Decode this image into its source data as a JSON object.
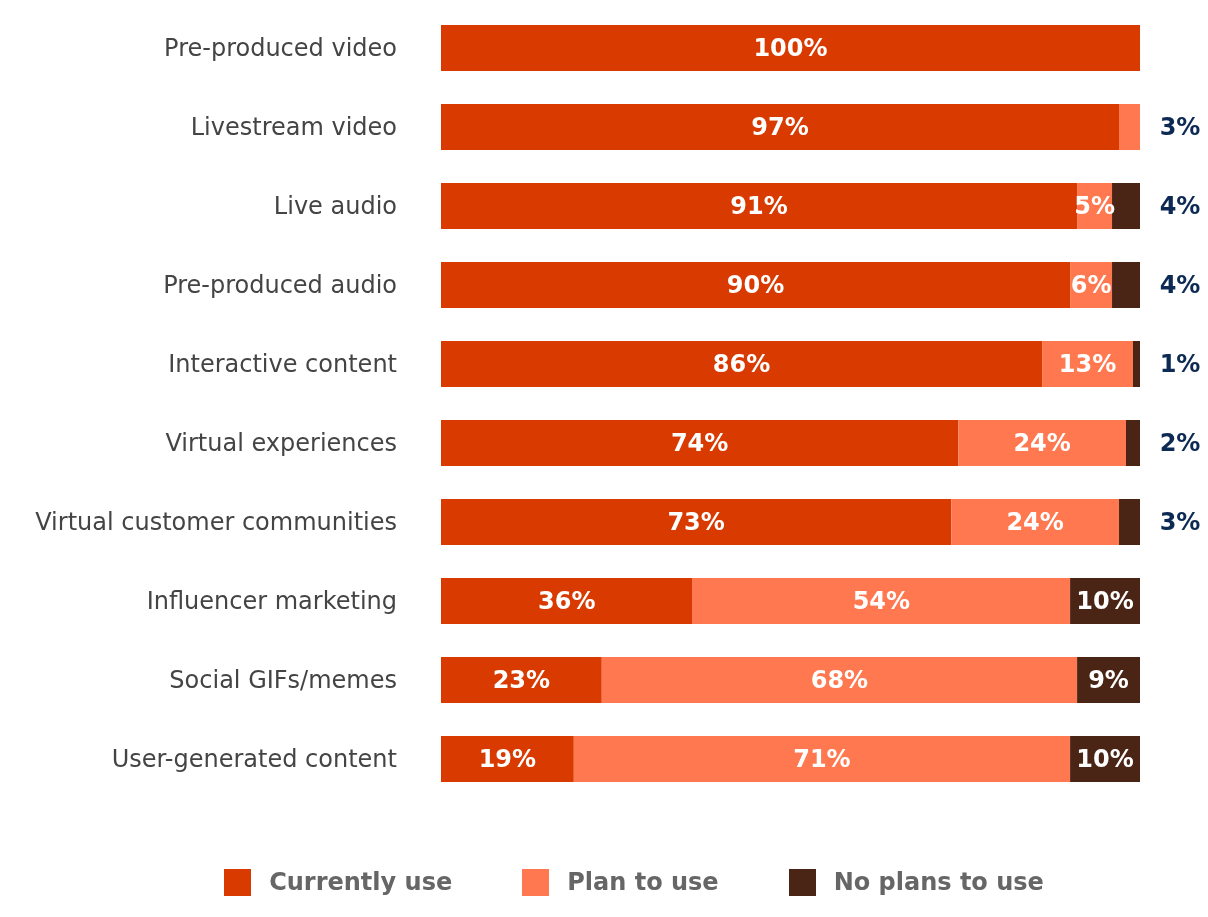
{
  "chart_data": {
    "type": "bar",
    "orientation": "horizontal",
    "stacked": true,
    "legend": "bottom",
    "categories": [
      "Pre-produced video",
      "Livestream video",
      "Live audio",
      "Pre-produced audio",
      "Interactive content",
      "Virtual experiences",
      "Virtual customer communities",
      "Influencer marketing",
      "Social GIFs/memes",
      "User-generated content"
    ],
    "series": [
      {
        "name": "Currently use",
        "color": "#d93a00",
        "values": [
          100,
          97,
          91,
          90,
          86,
          74,
          73,
          36,
          23,
          19
        ],
        "value_labels": [
          "100%",
          "97%",
          "91%",
          "90%",
          "86%",
          "74%",
          "73%",
          "36%",
          "23%",
          "19%"
        ]
      },
      {
        "name": "Plan to use",
        "color": "#ff7850",
        "values": [
          null,
          3,
          5,
          6,
          13,
          24,
          24,
          54,
          68,
          71
        ],
        "value_labels": [
          null,
          "3%",
          "5%",
          "6%",
          "13%",
          "24%",
          "24%",
          "54%",
          "68%",
          "71%"
        ]
      },
      {
        "name": "No plans to use",
        "color": "#4a2414",
        "values": [
          null,
          null,
          4,
          4,
          1,
          2,
          3,
          10,
          9,
          10
        ],
        "value_labels": [
          null,
          null,
          "4%",
          "4%",
          "1%",
          "2%",
          "3%",
          "10%",
          "9%",
          "10%"
        ]
      }
    ]
  }
}
